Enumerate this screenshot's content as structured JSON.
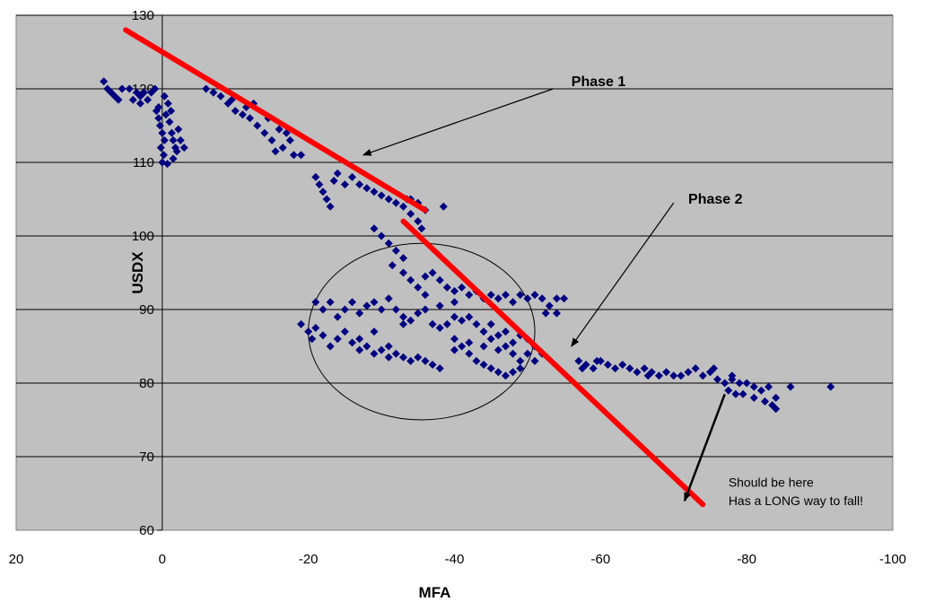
{
  "chart_data": {
    "type": "scatter",
    "title": "",
    "xlabel": "MFA",
    "ylabel": "USDX",
    "xlim": [
      20,
      -100
    ],
    "ylim": [
      60,
      130
    ],
    "x_reversed": true,
    "x_ticks": [
      20,
      0,
      -20,
      -40,
      -60,
      -80,
      -100
    ],
    "y_ticks": [
      60,
      70,
      80,
      90,
      100,
      110,
      120,
      130
    ],
    "grid": "horizontal",
    "plot_background": "#c0c0c0",
    "point_color": "#000080",
    "marker": "diamond",
    "series": [
      {
        "points": [
          [
            8,
            121
          ],
          [
            7.5,
            120
          ],
          [
            7,
            119.5
          ],
          [
            6.5,
            119
          ],
          [
            6,
            118.5
          ],
          [
            5.5,
            120
          ],
          [
            4.5,
            120
          ],
          [
            3.5,
            119.5
          ],
          [
            3,
            119
          ],
          [
            4,
            118.5
          ],
          [
            3,
            118
          ],
          [
            2.5,
            119.5
          ],
          [
            2,
            118.5
          ],
          [
            1.5,
            119.5
          ],
          [
            1,
            120
          ],
          [
            0.8,
            117
          ],
          [
            0.5,
            116
          ],
          [
            0.3,
            115
          ],
          [
            0,
            114
          ],
          [
            -0.3,
            113
          ],
          [
            0.2,
            112
          ],
          [
            -0.2,
            111
          ],
          [
            0,
            110
          ],
          [
            -0.5,
            116.5
          ],
          [
            -1,
            115.5
          ],
          [
            -1.3,
            114
          ],
          [
            -1.5,
            113
          ],
          [
            -1.8,
            112
          ],
          [
            -2,
            111.5
          ],
          [
            -1.2,
            117
          ],
          [
            -0.8,
            118
          ],
          [
            -2.2,
            114.5
          ],
          [
            -2.5,
            113
          ],
          [
            -1.5,
            110.5
          ],
          [
            -0.7,
            109.8
          ],
          [
            -3,
            112
          ],
          [
            0.5,
            117.5
          ],
          [
            -0.3,
            119
          ],
          [
            -6,
            120
          ],
          [
            -7,
            119.5
          ],
          [
            -8,
            119
          ],
          [
            -9,
            118
          ],
          [
            -10,
            117
          ],
          [
            -11,
            116.5
          ],
          [
            -12,
            116
          ],
          [
            -13,
            115
          ],
          [
            -14,
            114
          ],
          [
            -15,
            113
          ],
          [
            -16,
            114.5
          ],
          [
            -17,
            114
          ],
          [
            -18,
            111
          ],
          [
            -19,
            111
          ],
          [
            -9.5,
            118.5
          ],
          [
            -11.5,
            117.5
          ],
          [
            -12.5,
            118
          ],
          [
            -14.5,
            116
          ],
          [
            -16.5,
            112
          ],
          [
            -15.5,
            111.5
          ],
          [
            -17.5,
            113
          ],
          [
            -21,
            108
          ],
          [
            -21.5,
            107
          ],
          [
            -22,
            106
          ],
          [
            -22.5,
            105
          ],
          [
            -23,
            104
          ],
          [
            -23.5,
            107.5
          ],
          [
            -24,
            108.5
          ],
          [
            -25,
            107
          ],
          [
            -26,
            108
          ],
          [
            -27,
            107
          ],
          [
            -28,
            106.5
          ],
          [
            -29,
            106
          ],
          [
            -30,
            105.5
          ],
          [
            -31,
            105
          ],
          [
            -32,
            104.5
          ],
          [
            -33,
            104
          ],
          [
            -33.5,
            105
          ],
          [
            -34,
            105
          ],
          [
            -35,
            104.5
          ],
          [
            -36,
            103.5
          ],
          [
            -38.5,
            104
          ],
          [
            -34,
            103
          ],
          [
            -35,
            102
          ],
          [
            -35.5,
            101
          ],
          [
            -29,
            101
          ],
          [
            -30,
            100
          ],
          [
            -31,
            99
          ],
          [
            -32,
            98
          ],
          [
            -33,
            97
          ],
          [
            -31.5,
            96
          ],
          [
            -33,
            95
          ],
          [
            -34,
            94
          ],
          [
            -35,
            93
          ],
          [
            -36,
            94.5
          ],
          [
            -37,
            95
          ],
          [
            -38,
            94
          ],
          [
            -39,
            93
          ],
          [
            -40,
            92.5
          ],
          [
            -41,
            93
          ],
          [
            -42,
            92
          ],
          [
            -43,
            92.5
          ],
          [
            -44,
            91.5
          ],
          [
            -45,
            92
          ],
          [
            -46,
            91.5
          ],
          [
            -47,
            92
          ],
          [
            -48,
            91
          ],
          [
            -49,
            92
          ],
          [
            -50,
            91.5
          ],
          [
            -51,
            92
          ],
          [
            -52,
            91.5
          ],
          [
            -53,
            90.5
          ],
          [
            -54,
            91.5
          ],
          [
            -55,
            91.5
          ],
          [
            -52.5,
            89.5
          ],
          [
            -54,
            89.5
          ],
          [
            -19,
            88
          ],
          [
            -20,
            87
          ],
          [
            -20.5,
            86
          ],
          [
            -21,
            87.5
          ],
          [
            -22,
            86.5
          ],
          [
            -23,
            85
          ],
          [
            -24,
            86
          ],
          [
            -25,
            87
          ],
          [
            -26,
            85.5
          ],
          [
            -27,
            86
          ],
          [
            -28,
            85
          ],
          [
            -29,
            84
          ],
          [
            -30,
            84.5
          ],
          [
            -31,
            85
          ],
          [
            -32,
            84
          ],
          [
            -33,
            83.5
          ],
          [
            -34,
            83
          ],
          [
            -35,
            83.5
          ],
          [
            -36,
            83
          ],
          [
            -37,
            82.5
          ],
          [
            -38,
            82
          ],
          [
            -21,
            91
          ],
          [
            -22,
            90
          ],
          [
            -23,
            91
          ],
          [
            -24,
            89
          ],
          [
            -25,
            90
          ],
          [
            -26,
            91
          ],
          [
            -27,
            89.5
          ],
          [
            -28,
            90.5
          ],
          [
            -29,
            91
          ],
          [
            -30,
            90
          ],
          [
            -31,
            91.5
          ],
          [
            -32,
            90
          ],
          [
            -33,
            89
          ],
          [
            -34,
            88.5
          ],
          [
            -35,
            89.5
          ],
          [
            -36,
            90
          ],
          [
            -37,
            88
          ],
          [
            -38,
            87.5
          ],
          [
            -39,
            88
          ],
          [
            -40,
            89
          ],
          [
            -41,
            88.5
          ],
          [
            -42,
            89
          ],
          [
            -43,
            88
          ],
          [
            -44,
            87
          ],
          [
            -45,
            86
          ],
          [
            -46,
            86.5
          ],
          [
            -47,
            85
          ],
          [
            -48,
            84
          ],
          [
            -49,
            83
          ],
          [
            -50,
            84
          ],
          [
            -51,
            85
          ],
          [
            -40,
            86
          ],
          [
            -41,
            85
          ],
          [
            -42,
            84
          ],
          [
            -43,
            83
          ],
          [
            -44,
            82.5
          ],
          [
            -45,
            82
          ],
          [
            -46,
            81.5
          ],
          [
            -47,
            81
          ],
          [
            -48,
            81.5
          ],
          [
            -49,
            82
          ],
          [
            -40,
            84.5
          ],
          [
            -42,
            85.5
          ],
          [
            -44,
            85
          ],
          [
            -46,
            84.5
          ],
          [
            -48,
            85.5
          ],
          [
            -50,
            86
          ],
          [
            -45,
            88
          ],
          [
            -47,
            87
          ],
          [
            -49,
            86.5
          ],
          [
            -38,
            90.5
          ],
          [
            -40,
            91
          ],
          [
            -36,
            92
          ],
          [
            -27,
            84.5
          ],
          [
            -31,
            83.5
          ],
          [
            -33,
            88
          ],
          [
            -29,
            87
          ],
          [
            -51,
            83
          ],
          [
            -52,
            84
          ],
          [
            -57,
            83
          ],
          [
            -58,
            82.5
          ],
          [
            -59,
            82
          ],
          [
            -60,
            83
          ],
          [
            -61,
            82.5
          ],
          [
            -62,
            82
          ],
          [
            -63,
            82.5
          ],
          [
            -64,
            82
          ],
          [
            -65,
            81.5
          ],
          [
            -66,
            82
          ],
          [
            -67,
            81.5
          ],
          [
            -68,
            81
          ],
          [
            -69,
            81.5
          ],
          [
            -70,
            81
          ],
          [
            -71,
            81
          ],
          [
            -72,
            81.5
          ],
          [
            -73,
            82
          ],
          [
            -74,
            81
          ],
          [
            -75,
            81.5
          ],
          [
            -76,
            80.5
          ],
          [
            -77,
            80
          ],
          [
            -78,
            80.5
          ],
          [
            -79,
            80
          ],
          [
            -80,
            80
          ],
          [
            -81,
            79.5
          ],
          [
            -82,
            79
          ],
          [
            -83,
            79.5
          ],
          [
            -84,
            78
          ],
          [
            -77.5,
            79
          ],
          [
            -78.5,
            78.5
          ],
          [
            -79.5,
            78.5
          ],
          [
            -81,
            78
          ],
          [
            -82.5,
            77.5
          ],
          [
            -83.5,
            77
          ],
          [
            -84,
            76.5
          ],
          [
            -86,
            79.5
          ],
          [
            -91.5,
            79.5
          ],
          [
            -57.5,
            82
          ],
          [
            -59.5,
            83
          ],
          [
            -66.5,
            81
          ],
          [
            -75.5,
            82
          ],
          [
            -78,
            81
          ]
        ]
      }
    ],
    "trend_lines": [
      {
        "label": "Phase 1",
        "x": [
          5,
          -36
        ],
        "y": [
          128,
          103.5
        ]
      },
      {
        "label": "Phase 2",
        "x": [
          -33,
          -74
        ],
        "y": [
          102,
          63.5
        ]
      }
    ],
    "ellipse": {
      "cx": -35.5,
      "cy": 87,
      "rx": 15.5,
      "ry": 12
    },
    "annotations": [
      {
        "text": "Phase 1",
        "style": "bold",
        "at": [
          -56,
          121
        ],
        "arrow_from": [
          -53.5,
          120
        ],
        "arrow_to": [
          -27.5,
          111
        ]
      },
      {
        "text": "Phase 2",
        "style": "bold",
        "at": [
          -72,
          105
        ],
        "arrow_from": [
          -70,
          104.5
        ],
        "arrow_to": [
          -56,
          85
        ]
      },
      {
        "text": "Should be here",
        "style": "normal",
        "at": [
          -77.5,
          66.5
        ]
      },
      {
        "text": "Has a LONG way to fall!",
        "style": "normal",
        "at": [
          -77.5,
          64
        ]
      }
    ],
    "extra_arrow": {
      "from": [
        -77,
        78.5
      ],
      "to": [
        -71.5,
        64
      ]
    }
  }
}
